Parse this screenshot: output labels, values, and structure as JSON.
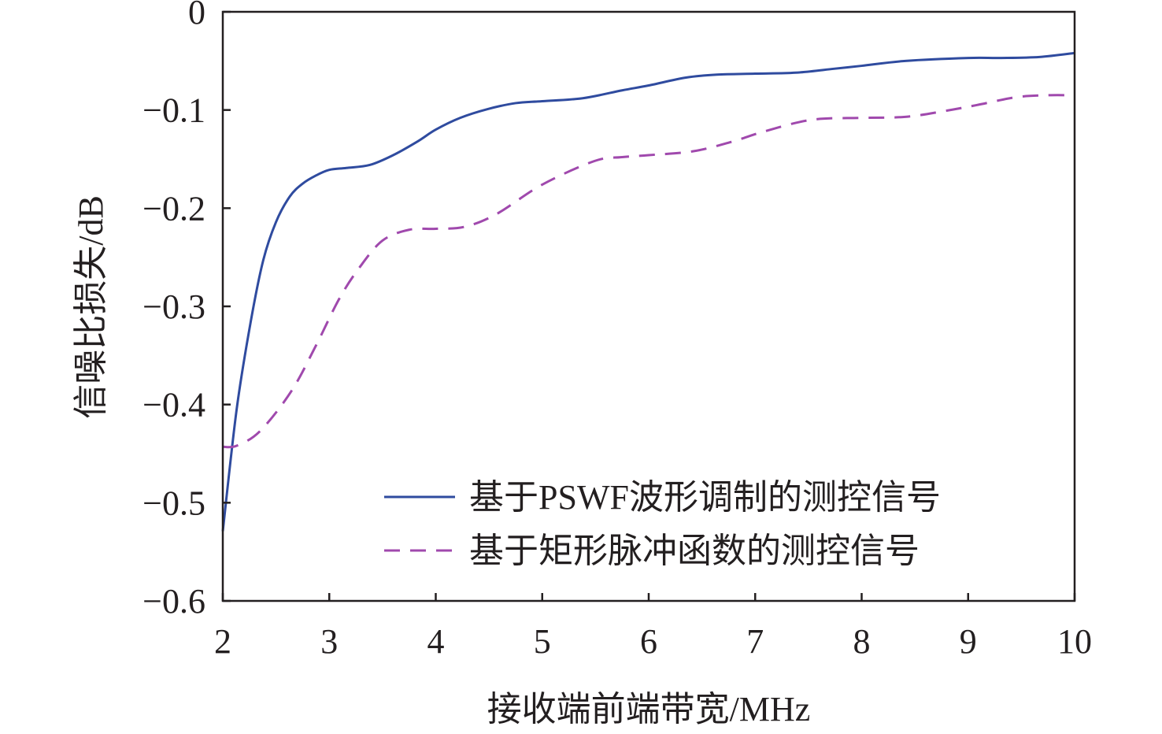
{
  "chart_data": {
    "type": "line",
    "title": "",
    "xlabel": "接收端前端带宽/MHz",
    "ylabel": "信噪比损失/dB",
    "xlim": [
      2,
      10
    ],
    "ylim": [
      -0.6,
      0
    ],
    "xticks": [
      2,
      3,
      4,
      5,
      6,
      7,
      8,
      9,
      10
    ],
    "xtick_labels": [
      "2",
      "3",
      "4",
      "5",
      "6",
      "7",
      "8",
      "9",
      "10"
    ],
    "yticks": [
      0,
      -0.1,
      -0.2,
      -0.3,
      -0.4,
      -0.5,
      -0.6
    ],
    "ytick_labels": [
      "0",
      "−0.1",
      "−0.2",
      "−0.3",
      "−0.4",
      "−0.5",
      "−0.6"
    ],
    "grid": false,
    "legend_position": "bottom-right",
    "series": [
      {
        "name": "基于PSWF波形调制的测控信号",
        "style": "solid",
        "color": "#2f4b9f",
        "x": [
          2,
          2.13,
          2.26,
          2.38,
          2.5,
          2.63,
          2.75,
          2.87,
          3,
          3.16,
          3.38,
          3.6,
          3.83,
          4,
          4.23,
          4.49,
          4.75,
          5,
          5.38,
          5.75,
          6,
          6.35,
          6.64,
          7,
          7.38,
          7.74,
          8,
          8.41,
          9,
          9.3,
          9.67,
          10
        ],
        "y": [
          -0.529,
          -0.405,
          -0.317,
          -0.253,
          -0.214,
          -0.188,
          -0.175,
          -0.167,
          -0.161,
          -0.159,
          -0.156,
          -0.146,
          -0.132,
          -0.12,
          -0.108,
          -0.099,
          -0.093,
          -0.091,
          -0.088,
          -0.08,
          -0.075,
          -0.067,
          -0.064,
          -0.063,
          -0.062,
          -0.058,
          -0.055,
          -0.05,
          -0.047,
          -0.047,
          -0.046,
          -0.042
        ]
      },
      {
        "name": "基于矩形脉冲函数的测控信号",
        "style": "dashed",
        "color": "#a049ad",
        "x": [
          2,
          2.13,
          2.35,
          2.64,
          2.87,
          3.09,
          3.28,
          3.5,
          3.75,
          4,
          4.27,
          4.57,
          5,
          5.49,
          5.75,
          6,
          6.42,
          6.79,
          7.08,
          7.53,
          8,
          8.41,
          8.78,
          9.08,
          9.45,
          9.74,
          10
        ],
        "y": [
          -0.443,
          -0.442,
          -0.427,
          -0.387,
          -0.341,
          -0.293,
          -0.261,
          -0.233,
          -0.222,
          -0.221,
          -0.219,
          -0.206,
          -0.176,
          -0.152,
          -0.148,
          -0.146,
          -0.142,
          -0.132,
          -0.122,
          -0.11,
          -0.108,
          -0.107,
          -0.101,
          -0.095,
          -0.087,
          -0.085,
          -0.085
        ]
      }
    ]
  }
}
